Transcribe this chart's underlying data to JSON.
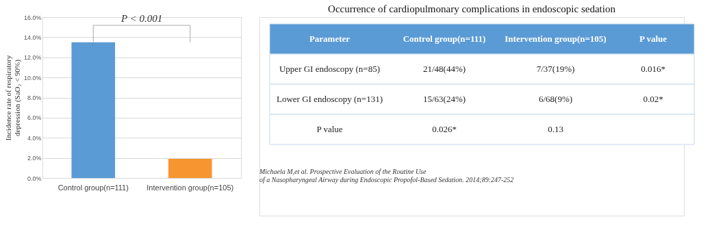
{
  "chart_data": [
    {
      "type": "bar",
      "ylabel": "Incidence rate of respiratory depression (SaO₂ < 90%)",
      "categories": [
        "Control group(n=111)",
        "Intervention group(n=105)"
      ],
      "values": [
        13.5,
        1.9
      ],
      "colors": [
        "#5b9bd5",
        "#f79530"
      ],
      "ylim": [
        0,
        16
      ],
      "yticks": [
        {
          "value": 0,
          "label": "0.0%"
        },
        {
          "value": 2,
          "label": "2.0%"
        },
        {
          "value": 4,
          "label": "4.0%"
        },
        {
          "value": 6,
          "label": "6.0%"
        },
        {
          "value": 8,
          "label": "8.0%"
        },
        {
          "value": 10,
          "label": "10.0%"
        },
        {
          "value": 12,
          "label": "12.0%"
        },
        {
          "value": 14,
          "label": "14.0%"
        },
        {
          "value": 16,
          "label": "16.0%"
        }
      ],
      "grid": "y",
      "annotations": [
        "P < 0.001"
      ]
    },
    {
      "type": "other",
      "title": "Occurrence of cardiopulmonary complications in endoscopic sedation",
      "annotations": [
        "Parameter",
        "Control group(n=111)",
        "Intervention group(n=105)",
        "P value",
        "Upper GI endoscopy (n=85)",
        "21/48(44%)",
        "7/37(19%)",
        "0.016*",
        "Lower GI endoscopy (n=131)",
        "15/63(24%)",
        "6/68(9%)",
        "0.02*",
        "P value",
        "0.026*",
        "0.13",
        "Michaela M,et al. Prospective Evaluation of the Routine Use of a Nasopharyngeal Airway during Endoscopic Propofol-Based Sedation. 2014;89:247-252"
      ]
    }
  ]
}
